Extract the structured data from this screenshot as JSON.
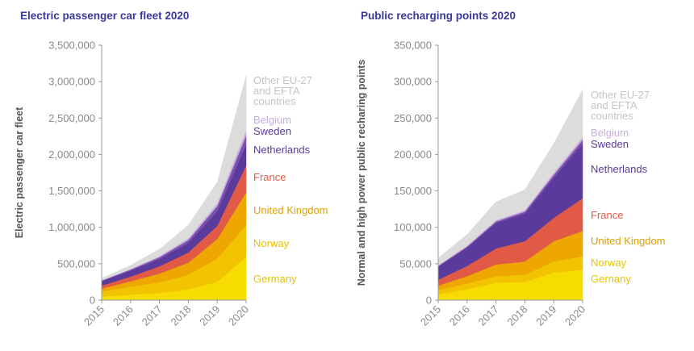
{
  "chart_data": [
    {
      "type": "area",
      "stacked": true,
      "title": "Electric passenger car fleet 2020",
      "ylabel": "Electric passenger car fleet",
      "xlabel": "",
      "x": [
        "2015",
        "2016",
        "2017",
        "2018",
        "2019",
        "2020"
      ],
      "ylim": [
        0,
        3500000
      ],
      "yticks": [
        "0",
        "500,000",
        "1,000,000",
        "1,500,000",
        "2,000,000",
        "2,500,000",
        "3,000,000",
        "3,500,000"
      ],
      "series": [
        {
          "name": "Germany",
          "color": "#f6dc00",
          "values": [
            50000,
            75000,
            100000,
            150000,
            250000,
            600000
          ]
        },
        {
          "name": "Norway",
          "color": "#f2c300",
          "values": [
            70000,
            110000,
            145000,
            200000,
            320000,
            430000
          ]
        },
        {
          "name": "United Kingdom",
          "color": "#eea600",
          "values": [
            40000,
            75000,
            120000,
            165000,
            270000,
            450000
          ]
        },
        {
          "name": "France",
          "color": "#e05a45",
          "values": [
            40000,
            65000,
            100000,
            140000,
            180000,
            370000
          ]
        },
        {
          "name": "Netherlands",
          "color": "#5a3a9a",
          "values": [
            60000,
            80000,
            100000,
            130000,
            200000,
            290000
          ]
        },
        {
          "name": "Sweden",
          "color": "#7a50b0",
          "values": [
            8000,
            15000,
            25000,
            40000,
            70000,
            120000
          ]
        },
        {
          "name": "Belgium",
          "color": "#c9acdf",
          "values": [
            5000,
            10000,
            15000,
            25000,
            40000,
            70000
          ]
        },
        {
          "name": "Other EU-27 and EFTA countries",
          "color": "#dcdcdc",
          "values": [
            27000,
            50000,
            95000,
            180000,
            290000,
            750000
          ]
        }
      ],
      "legend": [
        {
          "lines": [
            "Other EU-27",
            "and EFTA",
            "countries"
          ],
          "color": "#c4c4c4"
        },
        {
          "lines": [
            "Belgium"
          ],
          "color": "#c9acdf"
        },
        {
          "lines": [
            "Sweden"
          ],
          "color": "#5a3a9a"
        },
        {
          "lines": [
            "Netherlands"
          ],
          "color": "#5a3a9a"
        },
        {
          "lines": [
            "France"
          ],
          "color": "#e05a45"
        },
        {
          "lines": [
            "United Kingdom"
          ],
          "color": "#e0a000"
        },
        {
          "lines": [
            "Norway"
          ],
          "color": "#e8c400"
        },
        {
          "lines": [
            "Germany"
          ],
          "color": "#e8c400"
        }
      ]
    },
    {
      "type": "area",
      "stacked": true,
      "title": "Public recharging points 2020",
      "ylabel": "Normal and high power public recharing points",
      "xlabel": "",
      "x": [
        "2015",
        "2016",
        "2017",
        "2018",
        "2019",
        "2020"
      ],
      "ylim": [
        0,
        350000
      ],
      "yticks": [
        "0",
        "50,000",
        "100,000",
        "150,000",
        "200,000",
        "250,000",
        "300,000",
        "350,000"
      ],
      "series": [
        {
          "name": "Germany",
          "color": "#f6dc00",
          "values": [
            8000,
            15000,
            24000,
            25000,
            38000,
            42000
          ]
        },
        {
          "name": "Norway",
          "color": "#f2c300",
          "values": [
            6000,
            8000,
            9000,
            10000,
            15000,
            18000
          ]
        },
        {
          "name": "United Kingdom",
          "color": "#eea600",
          "values": [
            6000,
            10000,
            16000,
            18000,
            28000,
            35000
          ]
        },
        {
          "name": "France",
          "color": "#e05a45",
          "values": [
            8000,
            14000,
            22000,
            28000,
            32000,
            45000
          ]
        },
        {
          "name": "Netherlands",
          "color": "#5a3a9a",
          "values": [
            18000,
            25000,
            35000,
            38000,
            55000,
            75000
          ]
        },
        {
          "name": "Sweden",
          "color": "#7a50b0",
          "values": [
            1000,
            1500,
            2000,
            2500,
            4000,
            5000
          ]
        },
        {
          "name": "Belgium",
          "color": "#c9acdf",
          "values": [
            1000,
            1500,
            2000,
            2000,
            3000,
            4000
          ]
        },
        {
          "name": "Other EU-27 and EFTA countries",
          "color": "#dcdcdc",
          "values": [
            10000,
            15000,
            25000,
            28000,
            40000,
            65000
          ]
        }
      ],
      "legend": [
        {
          "lines": [
            "Other EU-27",
            "and EFTA",
            "countries"
          ],
          "color": "#c4c4c4"
        },
        {
          "lines": [
            "Belgium"
          ],
          "color": "#c9acdf"
        },
        {
          "lines": [
            "Sweden"
          ],
          "color": "#5a3a9a"
        },
        {
          "lines": [
            "Netherlands"
          ],
          "color": "#5a3a9a"
        },
        {
          "lines": [
            "France"
          ],
          "color": "#e05a45"
        },
        {
          "lines": [
            "United Kingdom"
          ],
          "color": "#e0a000"
        },
        {
          "lines": [
            "Norway"
          ],
          "color": "#e8c400"
        },
        {
          "lines": [
            "Gernany"
          ],
          "color": "#e8c400"
        }
      ]
    }
  ]
}
